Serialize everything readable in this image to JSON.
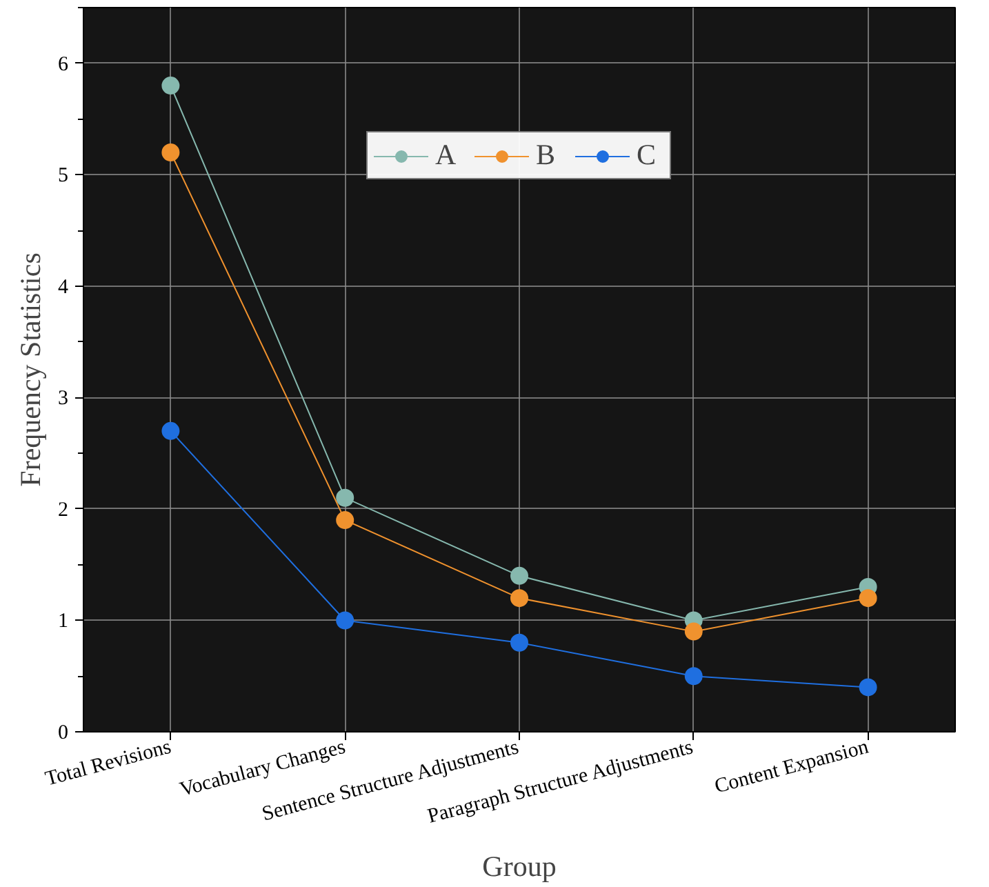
{
  "chart_data": {
    "type": "line",
    "xlabel": "Group",
    "ylabel": "Frequency Statistics",
    "categories": [
      "Total Revisions",
      "Vocabulary Changes",
      "Sentence Structure Adjustments",
      "Paragraph Structure Adjustments",
      "Content Expansion"
    ],
    "series": [
      {
        "name": "A",
        "color": "#86b8ae",
        "values": [
          5.8,
          2.1,
          1.4,
          1.0,
          1.3
        ]
      },
      {
        "name": "B",
        "color": "#f0922e",
        "values": [
          5.2,
          1.9,
          1.2,
          0.9,
          1.2
        ]
      },
      {
        "name": "C",
        "color": "#1f6fe0",
        "values": [
          2.7,
          1.0,
          0.8,
          0.5,
          0.4
        ]
      }
    ],
    "ylim": [
      0,
      6.5
    ],
    "yticks": [
      0,
      1,
      2,
      3,
      4,
      5,
      6
    ],
    "grid": true,
    "legend": "top",
    "marker": "circle",
    "line_style": "solid"
  }
}
